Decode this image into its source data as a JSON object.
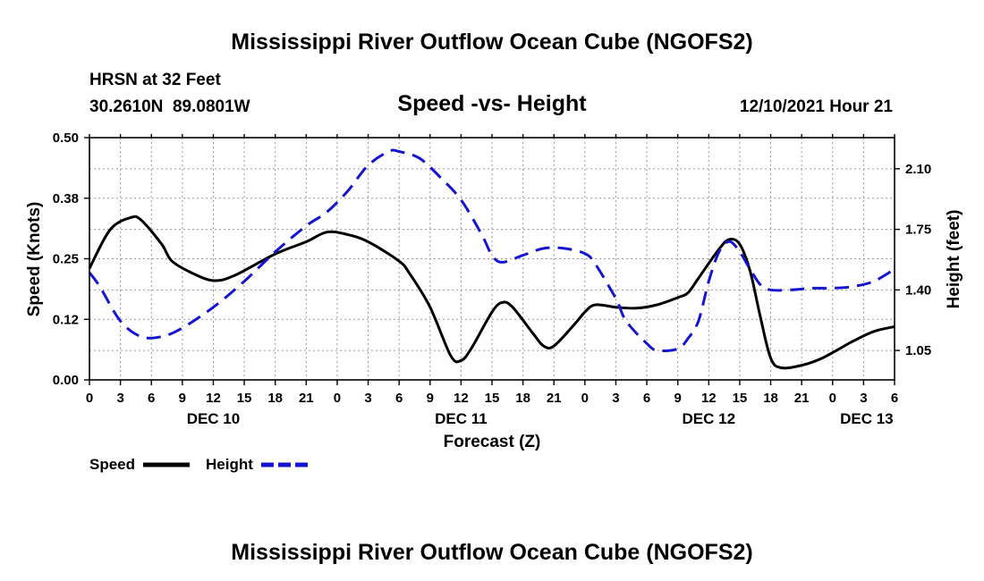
{
  "page": {
    "main_title": "Mississippi River Outflow Ocean Cube (NGOFS2)",
    "footer_title": "Mississippi River Outflow Ocean Cube (NGOFS2)",
    "station": "HRSN at 32 Feet",
    "coords": "30.2610N  89.0801W",
    "subtitle": "Speed -vs- Height",
    "timestamp": "12/10/2021 Hour 21"
  },
  "chart_data": {
    "type": "line",
    "title": "Speed -vs- Height",
    "xlabel": "Forecast (Z)",
    "ylabel_left": "Speed (Knots)",
    "ylabel_right": "Height (feet)",
    "x_range_hours": [
      0,
      78
    ],
    "x_ticks": [
      {
        "h": 0,
        "label": "0"
      },
      {
        "h": 3,
        "label": "3"
      },
      {
        "h": 6,
        "label": "6"
      },
      {
        "h": 9,
        "label": "9"
      },
      {
        "h": 12,
        "label": "12"
      },
      {
        "h": 15,
        "label": "15"
      },
      {
        "h": 18,
        "label": "18"
      },
      {
        "h": 21,
        "label": "21"
      },
      {
        "h": 24,
        "label": "0"
      },
      {
        "h": 27,
        "label": "3"
      },
      {
        "h": 30,
        "label": "6"
      },
      {
        "h": 33,
        "label": "9"
      },
      {
        "h": 36,
        "label": "12"
      },
      {
        "h": 39,
        "label": "15"
      },
      {
        "h": 42,
        "label": "18"
      },
      {
        "h": 45,
        "label": "21"
      },
      {
        "h": 48,
        "label": "0"
      },
      {
        "h": 51,
        "label": "3"
      },
      {
        "h": 54,
        "label": "6"
      },
      {
        "h": 57,
        "label": "9"
      },
      {
        "h": 60,
        "label": "12"
      },
      {
        "h": 63,
        "label": "15"
      },
      {
        "h": 66,
        "label": "18"
      },
      {
        "h": 69,
        "label": "21"
      },
      {
        "h": 72,
        "label": "0"
      },
      {
        "h": 75,
        "label": "3"
      },
      {
        "h": 78,
        "label": "6"
      }
    ],
    "date_labels": [
      {
        "h": 12,
        "label": "DEC 10"
      },
      {
        "h": 36,
        "label": "DEC 11"
      },
      {
        "h": 60,
        "label": "DEC 12"
      },
      {
        "h": 75.3,
        "label": "DEC 13"
      }
    ],
    "y_left": {
      "min": 0,
      "max": 0.5,
      "ticks": [
        {
          "v": 0,
          "label": "0.00"
        },
        {
          "v": 0.125,
          "label": "0.12"
        },
        {
          "v": 0.25,
          "label": "0.25"
        },
        {
          "v": 0.375,
          "label": "0.38"
        },
        {
          "v": 0.5,
          "label": "0.50"
        }
      ]
    },
    "y_right": {
      "min": 0.88,
      "max": 2.28,
      "ticks": [
        {
          "v": 1.05,
          "label": "1.05"
        },
        {
          "v": 1.4,
          "label": "1.40"
        },
        {
          "v": 1.75,
          "label": "1.75"
        },
        {
          "v": 2.1,
          "label": "2.10"
        }
      ]
    },
    "series": [
      {
        "name": "Speed",
        "axis": "left",
        "color": "#000000",
        "dash": false,
        "points": [
          [
            0,
            0.23
          ],
          [
            2,
            0.31
          ],
          [
            4,
            0.335
          ],
          [
            5,
            0.33
          ],
          [
            7,
            0.28
          ],
          [
            8,
            0.245
          ],
          [
            10,
            0.22
          ],
          [
            12,
            0.205
          ],
          [
            14,
            0.215
          ],
          [
            18,
            0.26
          ],
          [
            21,
            0.285
          ],
          [
            23,
            0.305
          ],
          [
            25,
            0.3
          ],
          [
            27,
            0.285
          ],
          [
            30,
            0.245
          ],
          [
            31,
            0.22
          ],
          [
            33,
            0.15
          ],
          [
            35,
            0.05
          ],
          [
            36,
            0.04
          ],
          [
            37,
            0.065
          ],
          [
            39,
            0.14
          ],
          [
            40,
            0.16
          ],
          [
            41,
            0.15
          ],
          [
            43,
            0.095
          ],
          [
            44,
            0.07
          ],
          [
            45,
            0.07
          ],
          [
            47,
            0.115
          ],
          [
            48,
            0.14
          ],
          [
            49,
            0.155
          ],
          [
            51,
            0.15
          ],
          [
            53,
            0.148
          ],
          [
            55,
            0.155
          ],
          [
            57,
            0.17
          ],
          [
            58,
            0.18
          ],
          [
            59,
            0.21
          ],
          [
            61,
            0.27
          ],
          [
            62,
            0.29
          ],
          [
            63,
            0.28
          ],
          [
            64,
            0.225
          ],
          [
            65,
            0.13
          ],
          [
            66,
            0.045
          ],
          [
            67,
            0.025
          ],
          [
            69,
            0.03
          ],
          [
            71,
            0.045
          ],
          [
            74,
            0.08
          ],
          [
            76,
            0.1
          ],
          [
            78,
            0.11
          ]
        ]
      },
      {
        "name": "Height",
        "axis": "right",
        "color": "#1515d0",
        "dash": true,
        "points": [
          [
            0,
            1.5
          ],
          [
            1,
            1.42
          ],
          [
            3,
            1.22
          ],
          [
            5,
            1.13
          ],
          [
            7,
            1.13
          ],
          [
            9,
            1.18
          ],
          [
            12,
            1.3
          ],
          [
            15,
            1.45
          ],
          [
            18,
            1.62
          ],
          [
            21,
            1.77
          ],
          [
            23,
            1.85
          ],
          [
            25,
            1.97
          ],
          [
            27,
            2.12
          ],
          [
            29,
            2.2
          ],
          [
            30,
            2.2
          ],
          [
            32,
            2.16
          ],
          [
            34,
            2.05
          ],
          [
            36,
            1.92
          ],
          [
            38,
            1.72
          ],
          [
            39,
            1.6
          ],
          [
            40,
            1.56
          ],
          [
            42,
            1.6
          ],
          [
            44,
            1.64
          ],
          [
            46,
            1.64
          ],
          [
            48,
            1.61
          ],
          [
            49,
            1.55
          ],
          [
            51,
            1.35
          ],
          [
            52,
            1.22
          ],
          [
            54,
            1.09
          ],
          [
            55,
            1.05
          ],
          [
            57,
            1.06
          ],
          [
            58,
            1.12
          ],
          [
            59,
            1.22
          ],
          [
            60,
            1.45
          ],
          [
            61,
            1.62
          ],
          [
            62,
            1.68
          ],
          [
            63,
            1.62
          ],
          [
            64,
            1.52
          ],
          [
            65,
            1.43
          ],
          [
            66,
            1.4
          ],
          [
            68,
            1.4
          ],
          [
            70,
            1.41
          ],
          [
            72,
            1.41
          ],
          [
            74,
            1.42
          ],
          [
            76,
            1.45
          ],
          [
            78,
            1.52
          ]
        ]
      }
    ],
    "legend": [
      {
        "name": "Speed",
        "label": "Speed",
        "color": "#000000",
        "dash": false
      },
      {
        "name": "Height",
        "label": "Height",
        "color": "#1515d0",
        "dash": true
      }
    ],
    "grid": true
  }
}
